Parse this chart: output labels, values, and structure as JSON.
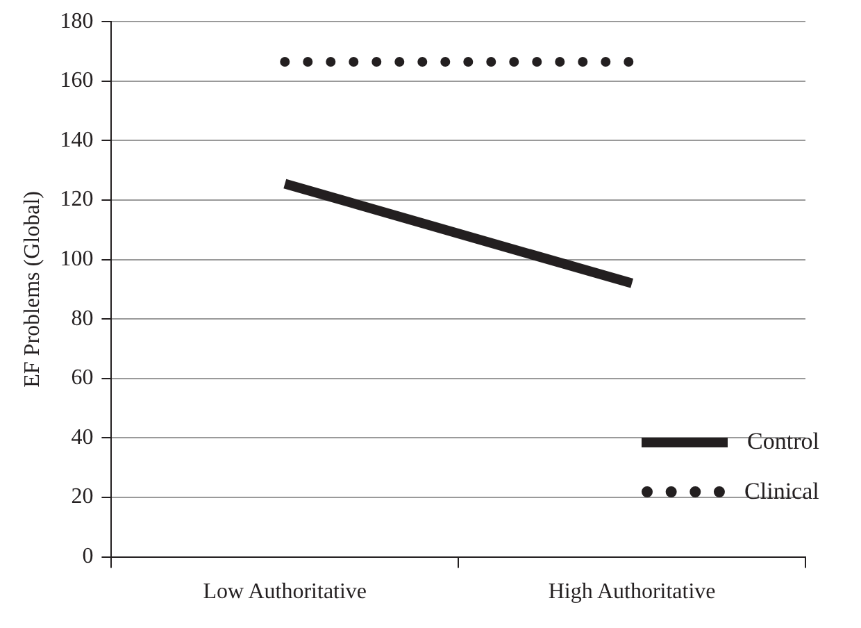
{
  "chart_data": {
    "type": "line",
    "ylabel": "EF Problems (Global)",
    "categories": [
      "Low Authoritative",
      "High Authoritative"
    ],
    "series": [
      {
        "name": "Control",
        "color": "#231f20",
        "values": [
          125.5,
          92
        ],
        "line_style": "solid"
      },
      {
        "name": "Clinical",
        "color": "#231f20",
        "values": [
          166.5,
          166.5
        ],
        "line_style": "dotted"
      }
    ],
    "ylim": [
      0,
      180
    ],
    "yticks": [
      0,
      20,
      40,
      60,
      80,
      100,
      120,
      140,
      160,
      180
    ],
    "grid": "y",
    "legend": "bottom right",
    "marker": "none"
  }
}
